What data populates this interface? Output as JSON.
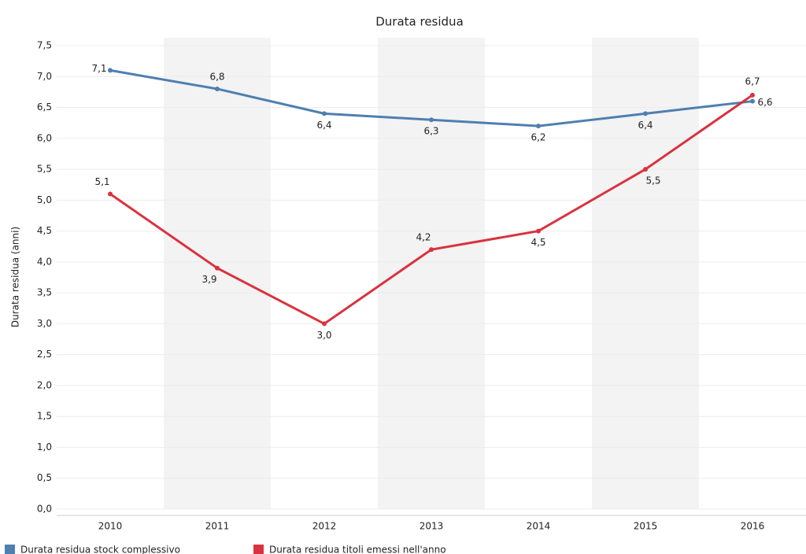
{
  "chart_data": {
    "type": "line",
    "title": "Durata residua",
    "y_label": "Durata residua (anni)",
    "categories": [
      "2010",
      "2011",
      "2012",
      "2013",
      "2014",
      "2015",
      "2016"
    ],
    "series": [
      {
        "name": "Durata residua stock complessivo",
        "color": "#4e7fb0",
        "values": [
          7.1,
          6.8,
          6.4,
          6.3,
          6.2,
          6.4,
          6.6
        ],
        "value_labels": [
          "7,1",
          "6,8",
          "6,4",
          "6,3",
          "6,2",
          "6,4",
          "6,6"
        ]
      },
      {
        "name": "Durata residua titoli emessi nell'anno",
        "color": "#d9333f",
        "values": [
          5.1,
          3.9,
          3.0,
          4.2,
          4.5,
          5.5,
          6.7
        ],
        "value_labels": [
          "5,1",
          "3,9",
          "3,0",
          "4,2",
          "4,5",
          "5,5",
          "6,7"
        ]
      }
    ],
    "ylim": [
      0,
      7.5
    ],
    "yticks": [
      {
        "value": 0,
        "label": "0,0"
      },
      {
        "value": 0.5,
        "label": "0,5"
      },
      {
        "value": 1,
        "label": "1,0"
      },
      {
        "value": 1.5,
        "label": "1,5"
      },
      {
        "value": 2,
        "label": "2,0"
      },
      {
        "value": 2.5,
        "label": "2,5"
      },
      {
        "value": 3,
        "label": "3,0"
      },
      {
        "value": 3.5,
        "label": "3,5"
      },
      {
        "value": 4,
        "label": "4,0"
      },
      {
        "value": 4.5,
        "label": "4,5"
      },
      {
        "value": 5,
        "label": "5,0"
      },
      {
        "value": 5.5,
        "label": "5,5"
      },
      {
        "value": 6,
        "label": "6,0"
      },
      {
        "value": 6.5,
        "label": "6,5"
      },
      {
        "value": 7,
        "label": "7,0"
      },
      {
        "value": 7.5,
        "label": "7,5"
      }
    ],
    "grid": true,
    "legend": "bottom"
  }
}
